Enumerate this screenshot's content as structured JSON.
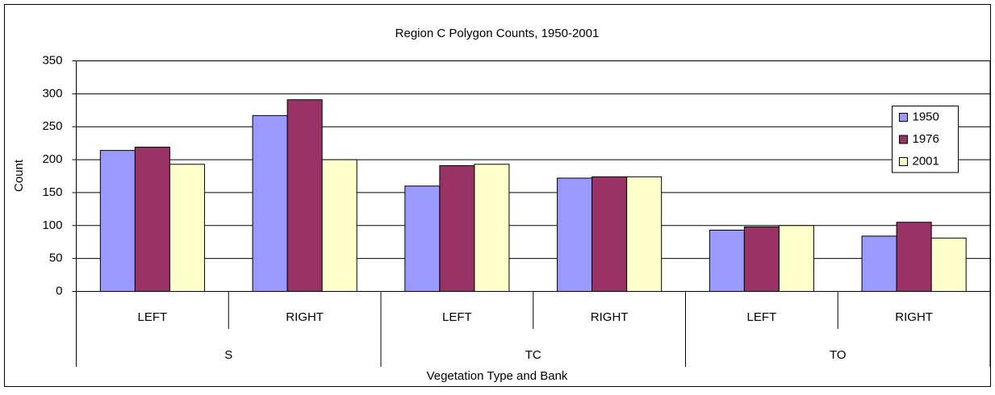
{
  "chart_data": {
    "type": "bar",
    "title": "Region C Polygon Counts, 1950-2001",
    "x_label": "Vegetation Type and Bank",
    "y_label": "Count",
    "categories": [
      "LEFT",
      "RIGHT",
      "LEFT",
      "RIGHT",
      "LEFT",
      "RIGHT"
    ],
    "groups": [
      "S",
      "TC",
      "TO"
    ],
    "series": [
      {
        "name": "1950",
        "color": "#9999ff",
        "values": [
          214,
          267,
          160,
          172,
          93,
          84
        ]
      },
      {
        "name": "1976",
        "color": "#993366",
        "values": [
          219,
          291,
          191,
          174,
          98,
          105
        ]
      },
      {
        "name": "2001",
        "color": "#ffffcc",
        "values": [
          193,
          200,
          193,
          174,
          100,
          81
        ]
      }
    ],
    "ylim": [
      0,
      350
    ],
    "yticks": [
      0,
      50,
      100,
      150,
      200,
      250,
      300,
      350
    ],
    "grid": true,
    "legend": "right"
  }
}
